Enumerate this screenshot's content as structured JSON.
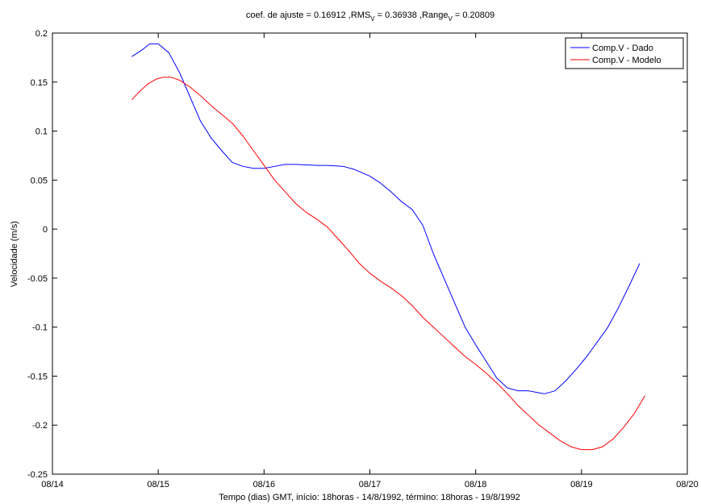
{
  "chart_data": {
    "type": "line",
    "title_parts": {
      "coef_label": "coef. de ajuste = 0.16912 ,RMS",
      "rms_sub": "V",
      "rms_value": " = 0.36938 ,Range",
      "range_sub": "V",
      "range_value": " = 0.20809"
    },
    "xlabel": "Tempo (dias) GMT, início: 18horas - 14/8/1992, término: 18horas - 19/8/1992",
    "ylabel": "Velocidade (m/s)",
    "xlim": [
      14,
      20
    ],
    "ylim": [
      -0.25,
      0.2
    ],
    "x_ticks": [
      14,
      15,
      16,
      17,
      18,
      19,
      20
    ],
    "x_tick_labels": [
      "08/14",
      "08/15",
      "08/16",
      "08/17",
      "08/18",
      "08/19",
      "08/20"
    ],
    "y_ticks": [
      -0.25,
      -0.2,
      -0.15,
      -0.1,
      -0.05,
      0,
      0.05,
      0.1,
      0.15,
      0.2
    ],
    "y_tick_labels": [
      "-0.25",
      "-0.2",
      "-0.15",
      "-0.1",
      "-0.05",
      "0",
      "0.05",
      "0.1",
      "0.15",
      "0.2"
    ],
    "grid": false,
    "legend_position": "top-right",
    "series": [
      {
        "name": "Comp.V - Dado",
        "color": "#0000ff",
        "points": [
          [
            14.75,
            0.176
          ],
          [
            14.85,
            0.183
          ],
          [
            14.92,
            0.189
          ],
          [
            15.0,
            0.189
          ],
          [
            15.1,
            0.18
          ],
          [
            15.2,
            0.16
          ],
          [
            15.3,
            0.135
          ],
          [
            15.4,
            0.11
          ],
          [
            15.5,
            0.093
          ],
          [
            15.6,
            0.08
          ],
          [
            15.7,
            0.068
          ],
          [
            15.8,
            0.064
          ],
          [
            15.9,
            0.062
          ],
          [
            16.0,
            0.062
          ],
          [
            16.1,
            0.064
          ],
          [
            16.2,
            0.066
          ],
          [
            16.3,
            0.066
          ],
          [
            16.5,
            0.065
          ],
          [
            16.6,
            0.065
          ],
          [
            16.75,
            0.064
          ],
          [
            16.85,
            0.061
          ],
          [
            17.0,
            0.054
          ],
          [
            17.1,
            0.047
          ],
          [
            17.2,
            0.038
          ],
          [
            17.3,
            0.028
          ],
          [
            17.4,
            0.02
          ],
          [
            17.5,
            0.004
          ],
          [
            17.6,
            -0.025
          ],
          [
            17.7,
            -0.05
          ],
          [
            17.8,
            -0.075
          ],
          [
            17.9,
            -0.1
          ],
          [
            18.0,
            -0.118
          ],
          [
            18.1,
            -0.135
          ],
          [
            18.2,
            -0.152
          ],
          [
            18.3,
            -0.162
          ],
          [
            18.4,
            -0.165
          ],
          [
            18.5,
            -0.165
          ],
          [
            18.6,
            -0.167
          ],
          [
            18.65,
            -0.168
          ],
          [
            18.75,
            -0.165
          ],
          [
            18.85,
            -0.155
          ],
          [
            18.95,
            -0.143
          ],
          [
            19.05,
            -0.13
          ],
          [
            19.15,
            -0.115
          ],
          [
            19.25,
            -0.1
          ],
          [
            19.35,
            -0.08
          ],
          [
            19.45,
            -0.058
          ],
          [
            19.55,
            -0.035
          ]
        ]
      },
      {
        "name": "Comp.V - Modelo",
        "color": "#ff0000",
        "points": [
          [
            14.75,
            0.132
          ],
          [
            14.82,
            0.14
          ],
          [
            14.9,
            0.148
          ],
          [
            14.98,
            0.153
          ],
          [
            15.05,
            0.155
          ],
          [
            15.12,
            0.155
          ],
          [
            15.2,
            0.152
          ],
          [
            15.3,
            0.145
          ],
          [
            15.4,
            0.136
          ],
          [
            15.5,
            0.126
          ],
          [
            15.6,
            0.117
          ],
          [
            15.7,
            0.108
          ],
          [
            15.8,
            0.095
          ],
          [
            15.9,
            0.08
          ],
          [
            16.0,
            0.065
          ],
          [
            16.1,
            0.05
          ],
          [
            16.2,
            0.038
          ],
          [
            16.3,
            0.026
          ],
          [
            16.4,
            0.017
          ],
          [
            16.5,
            0.01
          ],
          [
            16.6,
            0.002
          ],
          [
            16.7,
            -0.01
          ],
          [
            16.8,
            -0.022
          ],
          [
            16.9,
            -0.035
          ],
          [
            17.0,
            -0.045
          ],
          [
            17.1,
            -0.053
          ],
          [
            17.2,
            -0.06
          ],
          [
            17.3,
            -0.068
          ],
          [
            17.4,
            -0.078
          ],
          [
            17.5,
            -0.09
          ],
          [
            17.6,
            -0.1
          ],
          [
            17.7,
            -0.11
          ],
          [
            17.8,
            -0.12
          ],
          [
            17.9,
            -0.13
          ],
          [
            18.0,
            -0.138
          ],
          [
            18.1,
            -0.147
          ],
          [
            18.2,
            -0.157
          ],
          [
            18.3,
            -0.168
          ],
          [
            18.4,
            -0.18
          ],
          [
            18.5,
            -0.19
          ],
          [
            18.6,
            -0.2
          ],
          [
            18.7,
            -0.208
          ],
          [
            18.8,
            -0.216
          ],
          [
            18.9,
            -0.222
          ],
          [
            19.0,
            -0.225
          ],
          [
            19.1,
            -0.225
          ],
          [
            19.2,
            -0.222
          ],
          [
            19.3,
            -0.214
          ],
          [
            19.4,
            -0.202
          ],
          [
            19.5,
            -0.188
          ],
          [
            19.6,
            -0.17
          ]
        ]
      }
    ]
  }
}
